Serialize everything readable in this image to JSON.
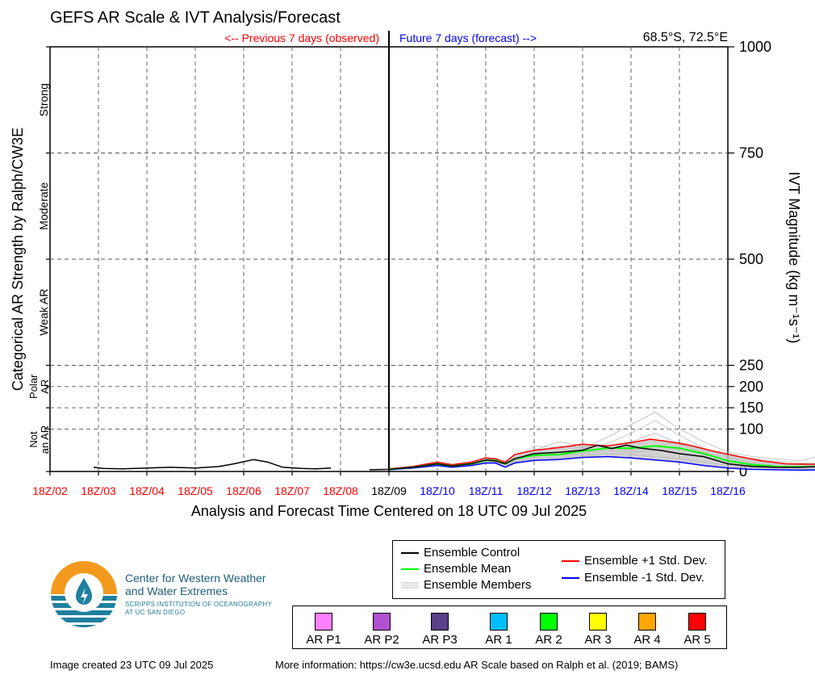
{
  "title": "GEFS AR Scale & IVT Analysis/Forecast",
  "location": "68.5°S, 72.5°E",
  "previous_label": "<-- Previous 7 days (observed)",
  "future_label": "Future 7 days (forecast) -->",
  "colors": {
    "observed": "#ff0000",
    "forecast": "#0000ff",
    "control": "#000000",
    "mean": "#00ff00",
    "members": "#bbbbbb",
    "plus_sd": "#ff0000",
    "minus_sd": "#0000ff"
  },
  "chart_data": {
    "type": "line",
    "xlabel": "Analysis and Forecast Time Centered on 18 UTC 09 Jul 2025",
    "ylabel_right": "IVT Magnitude (kg m⁻¹s⁻¹)",
    "ylabel_left": "Categorical AR Strength by Ralph/CW3E",
    "ylim": [
      0,
      1000
    ],
    "y_ticks": [
      0,
      100,
      150,
      200,
      250,
      500,
      750,
      1000
    ],
    "x_tick_labels": [
      "18Z/02",
      "18Z/03",
      "18Z/04",
      "18Z/05",
      "18Z/06",
      "18Z/07",
      "18Z/08",
      "18Z/09",
      "18Z/10",
      "18Z/11",
      "18Z/12",
      "18Z/13",
      "18Z/14",
      "18Z/15",
      "18Z/16"
    ],
    "x_unit": "days relative to 18Z/02",
    "now_index": 7,
    "categories": [
      {
        "label": "Strong",
        "from": 750,
        "to": 1000
      },
      {
        "label": "Moderate",
        "from": 500,
        "to": 750
      },
      {
        "label": "Weak AR",
        "from": 250,
        "to": 500
      },
      {
        "label": "Polar AR",
        "from": 150,
        "to": 250
      },
      {
        "label": "Not an AR",
        "from": 0,
        "to": 150
      }
    ],
    "grid": true,
    "series": [
      {
        "name": "Ensemble Control",
        "color": "#000000",
        "segments": [
          [
            [
              0.9,
              10
            ],
            [
              1.1,
              7
            ],
            [
              1.5,
              6
            ],
            [
              2.0,
              8
            ],
            [
              2.5,
              10
            ],
            [
              3.0,
              8
            ],
            [
              3.5,
              12
            ],
            [
              3.8,
              18
            ],
            [
              4.2,
              28
            ],
            [
              4.5,
              22
            ],
            [
              4.8,
              10
            ],
            [
              5.2,
              7
            ],
            [
              5.5,
              6
            ],
            [
              5.8,
              8
            ]
          ],
          [
            [
              6.6,
              4
            ],
            [
              7.0,
              5
            ],
            [
              7.5,
              10
            ],
            [
              8.0,
              18
            ],
            [
              8.3,
              13
            ],
            [
              8.7,
              18
            ],
            [
              9.0,
              27
            ],
            [
              9.2,
              25
            ],
            [
              9.4,
              18
            ],
            [
              9.6,
              30
            ],
            [
              10.0,
              42
            ],
            [
              10.5,
              45
            ],
            [
              11.0,
              50
            ],
            [
              11.3,
              62
            ],
            [
              11.6,
              54
            ],
            [
              11.9,
              62
            ],
            [
              12.2,
              55
            ],
            [
              12.6,
              50
            ],
            [
              13.0,
              42
            ],
            [
              13.5,
              35
            ],
            [
              14.0,
              18
            ],
            [
              14.5,
              12
            ],
            [
              15.0,
              10
            ],
            [
              15.5,
              10
            ],
            [
              16.0,
              12
            ],
            [
              16.5,
              10
            ],
            [
              17.0,
              6
            ]
          ]
        ]
      },
      {
        "name": "Ensemble Mean",
        "color": "#00ff00",
        "segments": [
          [
            [
              7.0,
              5
            ],
            [
              7.5,
              10
            ],
            [
              8.0,
              18
            ],
            [
              8.3,
              13
            ],
            [
              8.7,
              18
            ],
            [
              9.0,
              26
            ],
            [
              9.2,
              26
            ],
            [
              9.4,
              18
            ],
            [
              9.6,
              30
            ],
            [
              10.0,
              38
            ],
            [
              10.5,
              40
            ],
            [
              11.0,
              48
            ],
            [
              11.5,
              55
            ],
            [
              12.0,
              55
            ],
            [
              12.5,
              60
            ],
            [
              13.0,
              55
            ],
            [
              13.5,
              42
            ],
            [
              14.0,
              25
            ],
            [
              14.5,
              16
            ],
            [
              15.0,
              12
            ],
            [
              15.5,
              11
            ],
            [
              16.0,
              12
            ],
            [
              16.5,
              13
            ],
            [
              17.0,
              7
            ]
          ]
        ]
      },
      {
        "name": "Ensemble +1 Std. Dev.",
        "color": "#ff0000",
        "segments": [
          [
            [
              7.0,
              6
            ],
            [
              7.5,
              12
            ],
            [
              8.0,
              22
            ],
            [
              8.3,
              16
            ],
            [
              8.7,
              22
            ],
            [
              9.0,
              32
            ],
            [
              9.2,
              30
            ],
            [
              9.4,
              22
            ],
            [
              9.6,
              40
            ],
            [
              10.0,
              50
            ],
            [
              10.5,
              56
            ],
            [
              11.0,
              64
            ],
            [
              11.5,
              60
            ],
            [
              12.0,
              68
            ],
            [
              12.4,
              76
            ],
            [
              12.8,
              70
            ],
            [
              13.2,
              62
            ],
            [
              13.7,
              48
            ],
            [
              14.2,
              36
            ],
            [
              14.7,
              25
            ],
            [
              15.2,
              18
            ],
            [
              15.7,
              17
            ],
            [
              16.2,
              18
            ],
            [
              16.6,
              17
            ],
            [
              17.0,
              10
            ]
          ]
        ]
      },
      {
        "name": "Ensemble -1 Std. Dev.",
        "color": "#0000ff",
        "segments": [
          [
            [
              7.0,
              4
            ],
            [
              7.5,
              8
            ],
            [
              8.0,
              14
            ],
            [
              8.3,
              10
            ],
            [
              8.7,
              14
            ],
            [
              9.0,
              20
            ],
            [
              9.2,
              20
            ],
            [
              9.4,
              10
            ],
            [
              9.6,
              20
            ],
            [
              10.0,
              26
            ],
            [
              10.5,
              28
            ],
            [
              11.0,
              33
            ],
            [
              11.5,
              35
            ],
            [
              12.0,
              32
            ],
            [
              12.5,
              27
            ],
            [
              13.0,
              22
            ],
            [
              13.5,
              14
            ],
            [
              14.0,
              8
            ],
            [
              14.5,
              5
            ],
            [
              15.0,
              4
            ],
            [
              15.5,
              3
            ],
            [
              16.0,
              4
            ],
            [
              16.5,
              4
            ],
            [
              17.0,
              2
            ]
          ]
        ]
      }
    ],
    "members": [
      [
        [
          7.0,
          5
        ],
        [
          7.5,
          10
        ],
        [
          8.0,
          18
        ],
        [
          8.5,
          15
        ],
        [
          9.0,
          26
        ],
        [
          9.5,
          20
        ],
        [
          10.0,
          45
        ],
        [
          10.5,
          60
        ],
        [
          11.0,
          55
        ],
        [
          11.5,
          80
        ],
        [
          12.0,
          110
        ],
        [
          12.5,
          140
        ],
        [
          13.0,
          100
        ],
        [
          13.5,
          70
        ],
        [
          14.0,
          45
        ],
        [
          14.5,
          35
        ],
        [
          15.0,
          30
        ],
        [
          15.5,
          25
        ],
        [
          16.0,
          40
        ],
        [
          16.5,
          35
        ],
        [
          17.0,
          25
        ]
      ],
      [
        [
          7.0,
          5
        ],
        [
          7.5,
          11
        ],
        [
          8.0,
          20
        ],
        [
          8.5,
          16
        ],
        [
          9.0,
          30
        ],
        [
          9.5,
          22
        ],
        [
          10.0,
          60
        ],
        [
          10.5,
          55
        ],
        [
          11.0,
          65
        ],
        [
          11.5,
          60
        ],
        [
          12.0,
          70
        ],
        [
          12.5,
          90
        ],
        [
          13.0,
          65
        ],
        [
          13.5,
          45
        ],
        [
          14.0,
          30
        ],
        [
          14.5,
          20
        ],
        [
          15.0,
          15
        ],
        [
          15.5,
          18
        ],
        [
          16.0,
          20
        ],
        [
          16.5,
          15
        ],
        [
          17.0,
          10
        ]
      ],
      [
        [
          7.0,
          4
        ],
        [
          7.5,
          9
        ],
        [
          8.0,
          15
        ],
        [
          8.5,
          13
        ],
        [
          9.0,
          22
        ],
        [
          9.5,
          18
        ],
        [
          10.0,
          35
        ],
        [
          10.5,
          45
        ],
        [
          11.0,
          50
        ],
        [
          11.5,
          65
        ],
        [
          12.0,
          90
        ],
        [
          12.5,
          120
        ],
        [
          13.0,
          85
        ],
        [
          13.5,
          55
        ],
        [
          14.0,
          35
        ],
        [
          14.5,
          25
        ],
        [
          15.0,
          20
        ],
        [
          15.5,
          15
        ],
        [
          16.0,
          15
        ],
        [
          16.5,
          12
        ],
        [
          17.0,
          8
        ]
      ],
      [
        [
          7.0,
          5
        ],
        [
          7.5,
          10
        ],
        [
          8.0,
          17
        ],
        [
          8.5,
          14
        ],
        [
          9.0,
          25
        ],
        [
          9.5,
          19
        ],
        [
          10.0,
          40
        ],
        [
          10.5,
          38
        ],
        [
          11.0,
          42
        ],
        [
          11.5,
          50
        ],
        [
          12.0,
          45
        ],
        [
          12.5,
          50
        ],
        [
          13.0,
          55
        ],
        [
          13.5,
          40
        ],
        [
          14.0,
          25
        ],
        [
          14.5,
          18
        ],
        [
          15.0,
          12
        ],
        [
          15.5,
          10
        ],
        [
          16.0,
          10
        ],
        [
          16.5,
          8
        ],
        [
          17.0,
          5
        ]
      ],
      [
        [
          7.0,
          5
        ],
        [
          7.5,
          10
        ],
        [
          8.0,
          19
        ],
        [
          8.5,
          15
        ],
        [
          9.0,
          28
        ],
        [
          9.5,
          21
        ],
        [
          10.0,
          50
        ],
        [
          10.5,
          70
        ],
        [
          11.0,
          60
        ],
        [
          11.5,
          55
        ],
        [
          12.0,
          50
        ],
        [
          12.5,
          60
        ],
        [
          13.0,
          70
        ],
        [
          13.5,
          50
        ],
        [
          14.0,
          40
        ],
        [
          14.5,
          30
        ],
        [
          15.0,
          25
        ],
        [
          15.5,
          20
        ],
        [
          16.0,
          18
        ],
        [
          16.5,
          14
        ],
        [
          17.0,
          9
        ]
      ],
      [
        [
          7.0,
          4
        ],
        [
          7.5,
          8
        ],
        [
          8.0,
          14
        ],
        [
          8.5,
          12
        ],
        [
          9.0,
          20
        ],
        [
          9.5,
          16
        ],
        [
          10.0,
          30
        ],
        [
          10.5,
          32
        ],
        [
          11.0,
          38
        ],
        [
          11.5,
          42
        ],
        [
          12.0,
          40
        ],
        [
          12.5,
          35
        ],
        [
          13.0,
          30
        ],
        [
          13.5,
          22
        ],
        [
          14.0,
          14
        ],
        [
          14.5,
          10
        ],
        [
          15.0,
          8
        ],
        [
          15.5,
          7
        ],
        [
          16.0,
          7
        ],
        [
          16.5,
          6
        ],
        [
          17.0,
          4
        ]
      ]
    ]
  },
  "legend": {
    "control": "Ensemble Control",
    "mean": "Ensemble Mean",
    "members": "Ensemble Members",
    "plus_sd": "Ensemble +1 Std. Dev.",
    "minus_sd": "Ensemble -1 Std. Dev."
  },
  "ar_scale": [
    {
      "label": "AR P1",
      "color": "#ff80ff"
    },
    {
      "label": "AR P2",
      "color": "#b050d0"
    },
    {
      "label": "AR P3",
      "color": "#5a3f8a"
    },
    {
      "label": "AR 1",
      "color": "#00bfff"
    },
    {
      "label": "AR 2",
      "color": "#00ff00"
    },
    {
      "label": "AR 3",
      "color": "#ffff00"
    },
    {
      "label": "AR 4",
      "color": "#ffa500"
    },
    {
      "label": "AR 5",
      "color": "#ff0000"
    }
  ],
  "org": {
    "name_line1": "Center for Western Weather",
    "name_line2": "and Water Extremes",
    "sub_line1": "SCRIPPS INSTITUTION OF OCEANOGRAPHY",
    "sub_line2": "AT UC SAN DIEGO"
  },
  "footer": {
    "created": "Image created 23 UTC 09 Jul 2025",
    "more_info": "More information: https://cw3e.ucsd.edu AR Scale based on Ralph et al. (2019; BAMS)"
  }
}
